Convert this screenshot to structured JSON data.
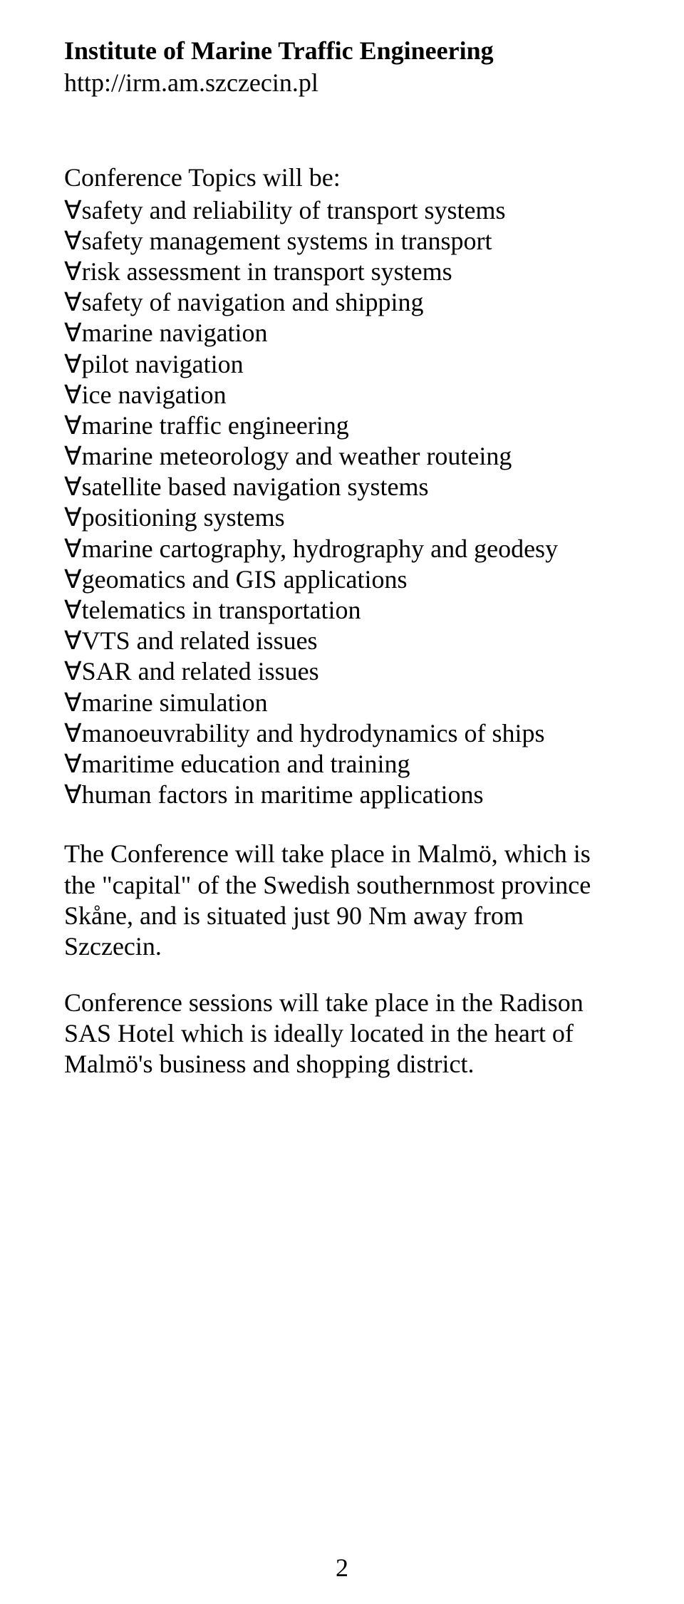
{
  "header": {
    "title": "Institute of Marine Traffic Engineering",
    "url": "http://irm.am.szczecin.pl"
  },
  "section": {
    "intro": "Conference Topics will be:",
    "topics": [
      "safety and reliability of transport systems",
      "safety management systems in transport",
      "risk assessment in transport systems",
      "safety of navigation and shipping",
      "marine navigation",
      "pilot navigation",
      "ice navigation",
      "marine traffic engineering",
      "marine meteorology and weather routeing",
      "satellite based navigation systems",
      "positioning systems",
      "marine cartography, hydrography and geodesy",
      "geomatics and GIS applications",
      "telematics in transportation",
      "VTS and related issues",
      "SAR and related issues",
      "marine simulation",
      "manoeuvrability and hydrodynamics of ships",
      "maritime education and training",
      "human factors in maritime applications"
    ]
  },
  "paragraphs": {
    "p1": "The Conference will take place in Malmö, which is the \"capital\" of the Swedish southernmost province Skåne, and is situated just 90 Nm away from Szczecin.",
    "p2": "Conference sessions will take place in the Radison SAS Hotel which is ideally located in the heart of Malmö's business and shopping district."
  },
  "pageNumber": "2",
  "style": {
    "bulletChar": "∀",
    "fontSize": 36,
    "fontFamily": "Times New Roman",
    "textColor": "#000000",
    "bgColor": "#ffffff"
  }
}
